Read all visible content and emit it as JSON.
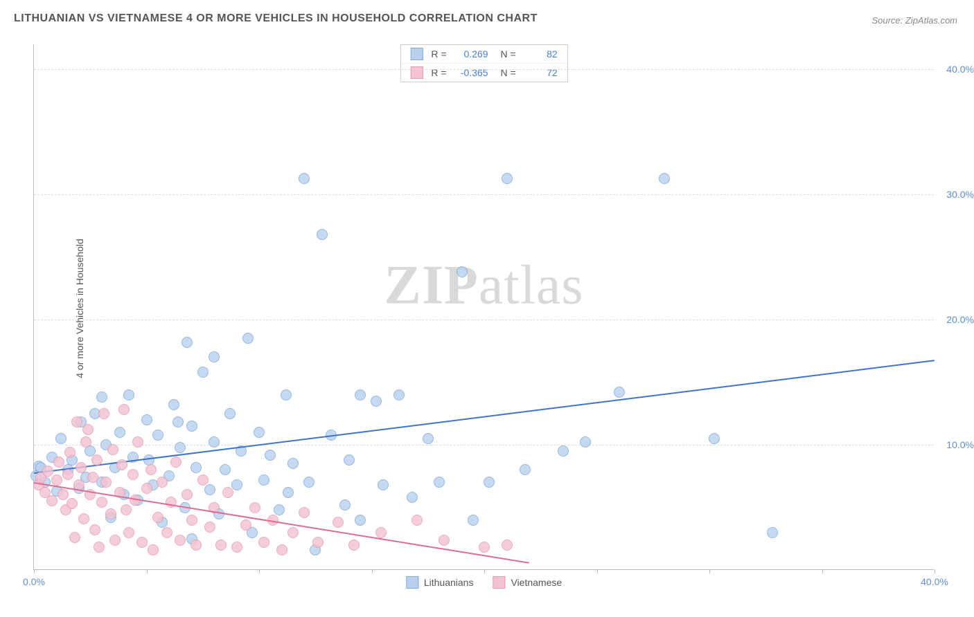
{
  "title": "LITHUANIAN VS VIETNAMESE 4 OR MORE VEHICLES IN HOUSEHOLD CORRELATION CHART",
  "source_label": "Source: ZipAtlas.com",
  "y_axis_label": "4 or more Vehicles in Household",
  "watermark": {
    "bold": "ZIP",
    "rest": "atlas"
  },
  "chart": {
    "type": "scatter",
    "xlim": [
      0,
      40
    ],
    "ylim": [
      0,
      42
    ],
    "background_color": "#ffffff",
    "grid_color": "#dddddd",
    "axis_color": "#bbbbbb",
    "x_ticks": [
      0,
      5,
      10,
      15,
      20,
      25,
      30,
      35,
      40
    ],
    "x_tick_labels": {
      "0": "0.0%",
      "40": "40.0%"
    },
    "y_gridlines": [
      10,
      20,
      30,
      40
    ],
    "y_tick_labels": {
      "10": "10.0%",
      "20": "20.0%",
      "30": "30.0%",
      "40": "40.0%"
    },
    "point_radius": 8,
    "series": [
      {
        "name": "Lithuanians",
        "fill_color": "#b9d1ee",
        "stroke_color": "#7fa8db",
        "trend_color": "#3a74cf",
        "R": "0.269",
        "N": "82",
        "trend": {
          "x1": 0,
          "y1": 7.8,
          "x2": 40,
          "y2": 16.8
        },
        "points": [
          [
            0.1,
            7.5
          ],
          [
            0.2,
            8.3
          ],
          [
            0.3,
            8.2
          ],
          [
            0.5,
            7.0
          ],
          [
            0.8,
            9.0
          ],
          [
            1.0,
            6.3
          ],
          [
            1.2,
            10.5
          ],
          [
            1.5,
            8.0
          ],
          [
            1.7,
            8.8
          ],
          [
            2.0,
            6.5
          ],
          [
            2.1,
            11.8
          ],
          [
            2.3,
            7.4
          ],
          [
            2.5,
            9.5
          ],
          [
            2.7,
            12.5
          ],
          [
            3.0,
            7.0
          ],
          [
            3.0,
            13.8
          ],
          [
            3.2,
            10.0
          ],
          [
            3.4,
            4.2
          ],
          [
            3.6,
            8.2
          ],
          [
            3.8,
            11.0
          ],
          [
            4.0,
            6.0
          ],
          [
            4.2,
            14.0
          ],
          [
            4.4,
            9.0
          ],
          [
            4.6,
            5.6
          ],
          [
            5.0,
            12.0
          ],
          [
            5.1,
            8.8
          ],
          [
            5.3,
            6.8
          ],
          [
            5.5,
            10.8
          ],
          [
            5.7,
            3.8
          ],
          [
            6.0,
            7.5
          ],
          [
            6.2,
            13.2
          ],
          [
            6.5,
            9.8
          ],
          [
            6.7,
            5.0
          ],
          [
            6.8,
            18.2
          ],
          [
            7.0,
            2.5
          ],
          [
            7.0,
            11.5
          ],
          [
            7.2,
            8.2
          ],
          [
            7.5,
            15.8
          ],
          [
            7.8,
            6.4
          ],
          [
            8.0,
            10.2
          ],
          [
            8.0,
            17.0
          ],
          [
            8.2,
            4.5
          ],
          [
            8.5,
            8.0
          ],
          [
            8.7,
            12.5
          ],
          [
            9.0,
            6.8
          ],
          [
            9.2,
            9.5
          ],
          [
            9.5,
            18.5
          ],
          [
            9.7,
            3.0
          ],
          [
            10.0,
            11.0
          ],
          [
            10.2,
            7.2
          ],
          [
            10.5,
            9.2
          ],
          [
            10.9,
            4.8
          ],
          [
            11.2,
            14.0
          ],
          [
            11.3,
            6.2
          ],
          [
            11.5,
            8.5
          ],
          [
            12.0,
            31.3
          ],
          [
            12.2,
            7.0
          ],
          [
            12.5,
            1.6
          ],
          [
            12.8,
            26.8
          ],
          [
            13.2,
            10.8
          ],
          [
            13.8,
            5.2
          ],
          [
            14.0,
            8.8
          ],
          [
            14.5,
            4.0
          ],
          [
            15.2,
            13.5
          ],
          [
            15.5,
            6.8
          ],
          [
            16.2,
            14.0
          ],
          [
            16.8,
            5.8
          ],
          [
            17.5,
            10.5
          ],
          [
            18.0,
            7.0
          ],
          [
            19.0,
            23.8
          ],
          [
            19.5,
            4.0
          ],
          [
            20.2,
            7.0
          ],
          [
            21.0,
            31.3
          ],
          [
            21.8,
            8.0
          ],
          [
            23.5,
            9.5
          ],
          [
            24.5,
            10.2
          ],
          [
            26.0,
            14.2
          ],
          [
            28.0,
            31.3
          ],
          [
            30.2,
            10.5
          ],
          [
            32.8,
            3.0
          ],
          [
            14.5,
            14.0
          ],
          [
            6.4,
            11.8
          ]
        ]
      },
      {
        "name": "Vietnamese",
        "fill_color": "#f3c3d1",
        "stroke_color": "#e898b2",
        "trend_color": "#e06b90",
        "R": "-0.365",
        "N": "72",
        "trend": {
          "x1": 0,
          "y1": 7.0,
          "x2": 22,
          "y2": 0.6
        },
        "points": [
          [
            0.2,
            6.8
          ],
          [
            0.3,
            7.4
          ],
          [
            0.5,
            6.2
          ],
          [
            0.6,
            7.9
          ],
          [
            0.8,
            5.5
          ],
          [
            1.0,
            7.2
          ],
          [
            1.1,
            8.6
          ],
          [
            1.3,
            6.0
          ],
          [
            1.4,
            4.8
          ],
          [
            1.5,
            7.6
          ],
          [
            1.6,
            9.4
          ],
          [
            1.7,
            5.3
          ],
          [
            1.8,
            2.6
          ],
          [
            2.0,
            6.8
          ],
          [
            2.1,
            8.2
          ],
          [
            2.2,
            4.1
          ],
          [
            2.3,
            10.2
          ],
          [
            2.5,
            6.0
          ],
          [
            2.6,
            7.4
          ],
          [
            2.7,
            3.2
          ],
          [
            2.8,
            8.8
          ],
          [
            2.9,
            1.8
          ],
          [
            3.0,
            5.4
          ],
          [
            3.1,
            12.5
          ],
          [
            3.2,
            7.0
          ],
          [
            3.4,
            4.5
          ],
          [
            3.5,
            9.6
          ],
          [
            3.6,
            2.4
          ],
          [
            3.8,
            6.2
          ],
          [
            3.9,
            8.4
          ],
          [
            4.0,
            12.8
          ],
          [
            4.1,
            4.8
          ],
          [
            4.2,
            3.0
          ],
          [
            4.4,
            7.6
          ],
          [
            4.5,
            5.6
          ],
          [
            4.6,
            10.2
          ],
          [
            4.8,
            2.2
          ],
          [
            5.0,
            6.5
          ],
          [
            5.2,
            8.0
          ],
          [
            5.3,
            1.6
          ],
          [
            5.5,
            4.2
          ],
          [
            5.7,
            7.0
          ],
          [
            5.9,
            3.0
          ],
          [
            6.1,
            5.4
          ],
          [
            6.3,
            8.6
          ],
          [
            6.5,
            2.4
          ],
          [
            6.8,
            6.0
          ],
          [
            7.0,
            4.0
          ],
          [
            7.2,
            2.0
          ],
          [
            7.5,
            7.2
          ],
          [
            7.8,
            3.4
          ],
          [
            8.0,
            5.0
          ],
          [
            8.3,
            2.0
          ],
          [
            8.6,
            6.2
          ],
          [
            9.0,
            1.8
          ],
          [
            9.4,
            3.6
          ],
          [
            9.8,
            5.0
          ],
          [
            10.2,
            2.2
          ],
          [
            10.6,
            4.0
          ],
          [
            11.0,
            1.6
          ],
          [
            11.5,
            3.0
          ],
          [
            12.0,
            4.6
          ],
          [
            12.6,
            2.2
          ],
          [
            13.5,
            3.8
          ],
          [
            14.2,
            2.0
          ],
          [
            15.4,
            3.0
          ],
          [
            17.0,
            4.0
          ],
          [
            18.2,
            2.4
          ],
          [
            20.0,
            1.8
          ],
          [
            21.0,
            2.0
          ],
          [
            1.9,
            11.8
          ],
          [
            2.4,
            11.2
          ]
        ]
      }
    ]
  },
  "bottom_legend": [
    {
      "label": "Lithuanians",
      "fill": "#b9d1ee",
      "stroke": "#7fa8db"
    },
    {
      "label": "Vietnamese",
      "fill": "#f3c3d1",
      "stroke": "#e898b2"
    }
  ]
}
